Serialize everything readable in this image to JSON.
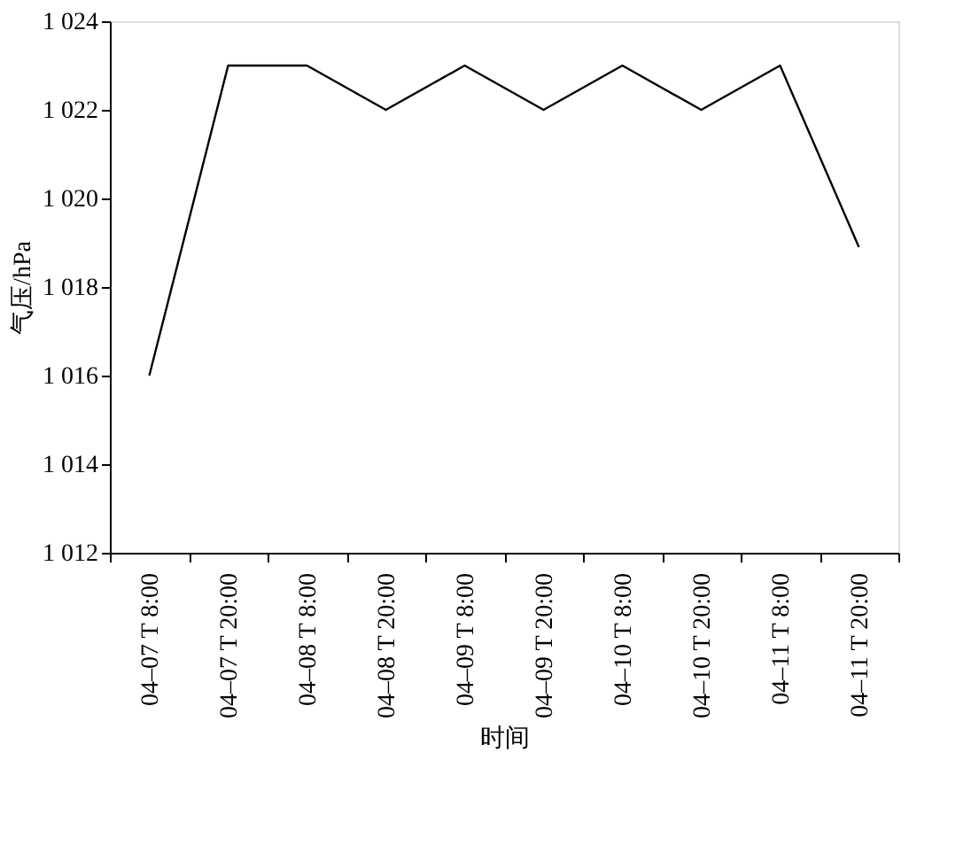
{
  "chart_data": {
    "type": "line",
    "xlabel": "时间",
    "ylabel": "气压/hPa",
    "categories": [
      "04–07 T 8:00",
      "04–07 T 20:00",
      "04–08 T 8:00",
      "04–08 T 20:00",
      "04–09 T 8:00",
      "04–09 T 20:00",
      "04–10 T 8:00",
      "04–10 T 20:00",
      "04–11 T 8:00",
      "04–11 T 20:00"
    ],
    "series": [
      {
        "color": "#000000",
        "values": [
          1016,
          1023,
          1023,
          1022,
          1023,
          1022,
          1023,
          1022,
          1023,
          1018.9
        ]
      }
    ],
    "ylim": [
      1012,
      1024
    ],
    "yticks": [
      {
        "value": 1012,
        "label": "1 012"
      },
      {
        "value": 1014,
        "label": "1 014"
      },
      {
        "value": 1016,
        "label": "1 016"
      },
      {
        "value": 1018,
        "label": "1 018"
      },
      {
        "value": 1020,
        "label": "1 020"
      },
      {
        "value": 1022,
        "label": "1 022"
      },
      {
        "value": 1024,
        "label": "1 024"
      }
    ],
    "grid": false,
    "legend": false,
    "marker": "none",
    "line_style": "solid"
  }
}
